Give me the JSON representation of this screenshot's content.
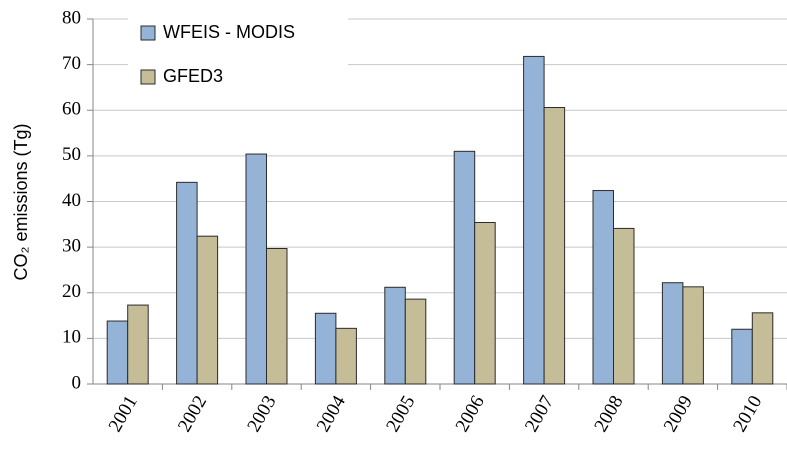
{
  "chart_data": {
    "type": "bar",
    "y_label": "CO₂ emissions (Tg)",
    "categories": [
      "2001",
      "2002",
      "2003",
      "2004",
      "2005",
      "2006",
      "2007",
      "2008",
      "2009",
      "2010"
    ],
    "series": [
      {
        "name": "WFEIS - MODIS",
        "color": "#95b3d7",
        "values": [
          13.8,
          44.2,
          50.4,
          15.5,
          21.2,
          51.0,
          71.8,
          42.4,
          22.2,
          12.0
        ]
      },
      {
        "name": "GFED3",
        "color": "#c4bd97",
        "values": [
          17.3,
          32.4,
          29.7,
          12.2,
          18.6,
          35.4,
          60.6,
          34.1,
          21.3,
          15.6
        ]
      }
    ],
    "ylim": [
      0,
      80
    ],
    "yticks": [
      0,
      10,
      20,
      30,
      40,
      50,
      60,
      70,
      80
    ],
    "grid": true
  }
}
